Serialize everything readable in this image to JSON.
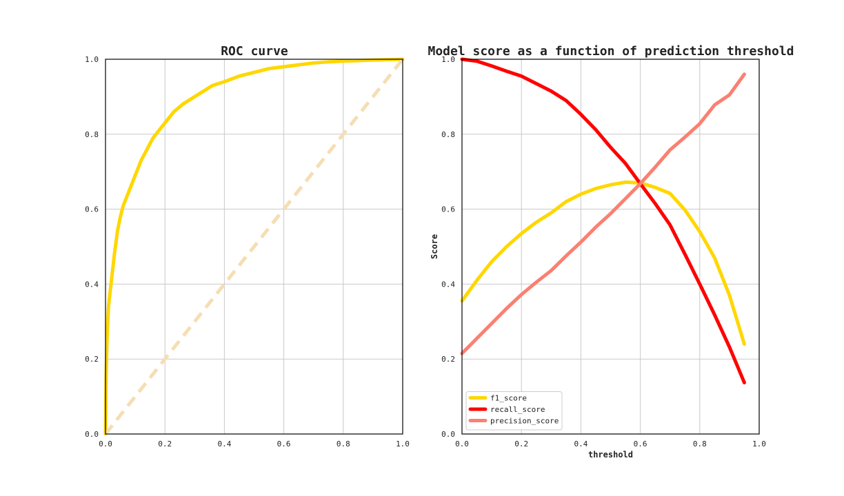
{
  "chart_data": [
    {
      "type": "line",
      "title": "ROC curve",
      "xlabel": "",
      "ylabel": "",
      "xlim": [
        0,
        1
      ],
      "ylim": [
        0,
        1
      ],
      "x_ticks": [
        "0.0",
        "0.2",
        "0.4",
        "0.6",
        "0.8",
        "1.0"
      ],
      "y_ticks": [
        "0.0",
        "0.2",
        "0.4",
        "0.6",
        "0.8",
        "1.0"
      ],
      "grid": true,
      "series": [
        {
          "color": "#FFD700",
          "style": "solid",
          "x": [
            0.0,
            0.002,
            0.005,
            0.01,
            0.02,
            0.03,
            0.04,
            0.05,
            0.06,
            0.08,
            0.1,
            0.12,
            0.14,
            0.16,
            0.18,
            0.2,
            0.23,
            0.26,
            0.3,
            0.33,
            0.36,
            0.4,
            0.45,
            0.5,
            0.55,
            0.6,
            0.65,
            0.7,
            0.75,
            0.8,
            0.9,
            1.0
          ],
          "y": [
            0.0,
            0.15,
            0.25,
            0.34,
            0.41,
            0.48,
            0.54,
            0.58,
            0.61,
            0.65,
            0.69,
            0.73,
            0.76,
            0.79,
            0.81,
            0.83,
            0.86,
            0.88,
            0.9,
            0.915,
            0.93,
            0.94,
            0.955,
            0.965,
            0.975,
            0.98,
            0.985,
            0.99,
            0.993,
            0.995,
            0.998,
            1.0
          ]
        },
        {
          "color": "#F5DEB3",
          "style": "dashed",
          "x": [
            0.0,
            1.0
          ],
          "y": [
            0.0,
            1.0
          ]
        }
      ]
    },
    {
      "type": "line",
      "title": "Model score as a function of prediction threshold",
      "xlabel": "threshold",
      "ylabel": "Score",
      "xlim": [
        0,
        1
      ],
      "ylim": [
        0,
        1
      ],
      "x_ticks": [
        "0.0",
        "0.2",
        "0.4",
        "0.6",
        "0.8",
        "1.0"
      ],
      "y_ticks": [
        "0.0",
        "0.2",
        "0.4",
        "0.6",
        "0.8",
        "1.0"
      ],
      "grid": true,
      "legend": "lower-left",
      "series": [
        {
          "name": "f1_score",
          "color": "#FFD700",
          "x": [
            0.0,
            0.05,
            0.1,
            0.15,
            0.2,
            0.25,
            0.3,
            0.35,
            0.4,
            0.45,
            0.5,
            0.55,
            0.6,
            0.65,
            0.7,
            0.75,
            0.8,
            0.85,
            0.9,
            0.95
          ],
          "y": [
            0.355,
            0.41,
            0.46,
            0.5,
            0.535,
            0.565,
            0.59,
            0.62,
            0.64,
            0.655,
            0.665,
            0.672,
            0.67,
            0.658,
            0.642,
            0.598,
            0.54,
            0.47,
            0.37,
            0.24
          ]
        },
        {
          "name": "recall_score",
          "color": "#FF0000",
          "x": [
            0.0,
            0.05,
            0.1,
            0.15,
            0.2,
            0.25,
            0.3,
            0.35,
            0.4,
            0.45,
            0.5,
            0.55,
            0.6,
            0.65,
            0.7,
            0.75,
            0.8,
            0.85,
            0.9,
            0.95
          ],
          "y": [
            1.0,
            0.995,
            0.982,
            0.968,
            0.955,
            0.935,
            0.915,
            0.89,
            0.853,
            0.812,
            0.765,
            0.722,
            0.668,
            0.615,
            0.558,
            0.48,
            0.4,
            0.318,
            0.232,
            0.137
          ]
        },
        {
          "name": "precision_score",
          "color": "#FA8072",
          "x": [
            0.0,
            0.05,
            0.1,
            0.15,
            0.2,
            0.25,
            0.3,
            0.35,
            0.4,
            0.45,
            0.5,
            0.55,
            0.6,
            0.65,
            0.7,
            0.75,
            0.8,
            0.85,
            0.9,
            0.95
          ],
          "y": [
            0.215,
            0.255,
            0.295,
            0.335,
            0.372,
            0.405,
            0.436,
            0.475,
            0.512,
            0.552,
            0.588,
            0.628,
            0.668,
            0.712,
            0.758,
            0.792,
            0.828,
            0.878,
            0.905,
            0.96
          ]
        }
      ]
    }
  ]
}
